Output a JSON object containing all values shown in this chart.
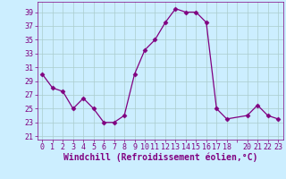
{
  "x": [
    0,
    1,
    2,
    3,
    4,
    5,
    6,
    7,
    8,
    9,
    10,
    11,
    12,
    13,
    14,
    15,
    16,
    17,
    18,
    20,
    21,
    22,
    23
  ],
  "y": [
    30,
    28,
    27.5,
    25,
    26.5,
    25,
    23,
    23,
    24,
    30,
    33.5,
    35,
    37.5,
    39.5,
    39,
    39,
    37.5,
    25,
    23.5,
    24,
    25.5,
    24,
    23.5
  ],
  "line_color": "#800080",
  "marker": "D",
  "marker_size": 2.5,
  "bg_color": "#cceeff",
  "grid_color": "#aacccc",
  "xlabel": "Windchill (Refroidissement éolien,°C)",
  "xlabel_fontsize": 7,
  "ylabel_ticks": [
    21,
    23,
    25,
    27,
    29,
    31,
    33,
    35,
    37,
    39
  ],
  "xtick_labels": [
    "0",
    "1",
    "2",
    "3",
    "4",
    "5",
    "6",
    "7",
    "8",
    "9",
    "10",
    "11",
    "12",
    "13",
    "14",
    "15",
    "16",
    "17",
    "18",
    "",
    "20",
    "21",
    "22",
    "23"
  ],
  "xlim": [
    -0.5,
    23.5
  ],
  "ylim": [
    20.5,
    40.5
  ],
  "tick_fontsize": 6,
  "tick_color": "#800080",
  "label_color": "#800080"
}
